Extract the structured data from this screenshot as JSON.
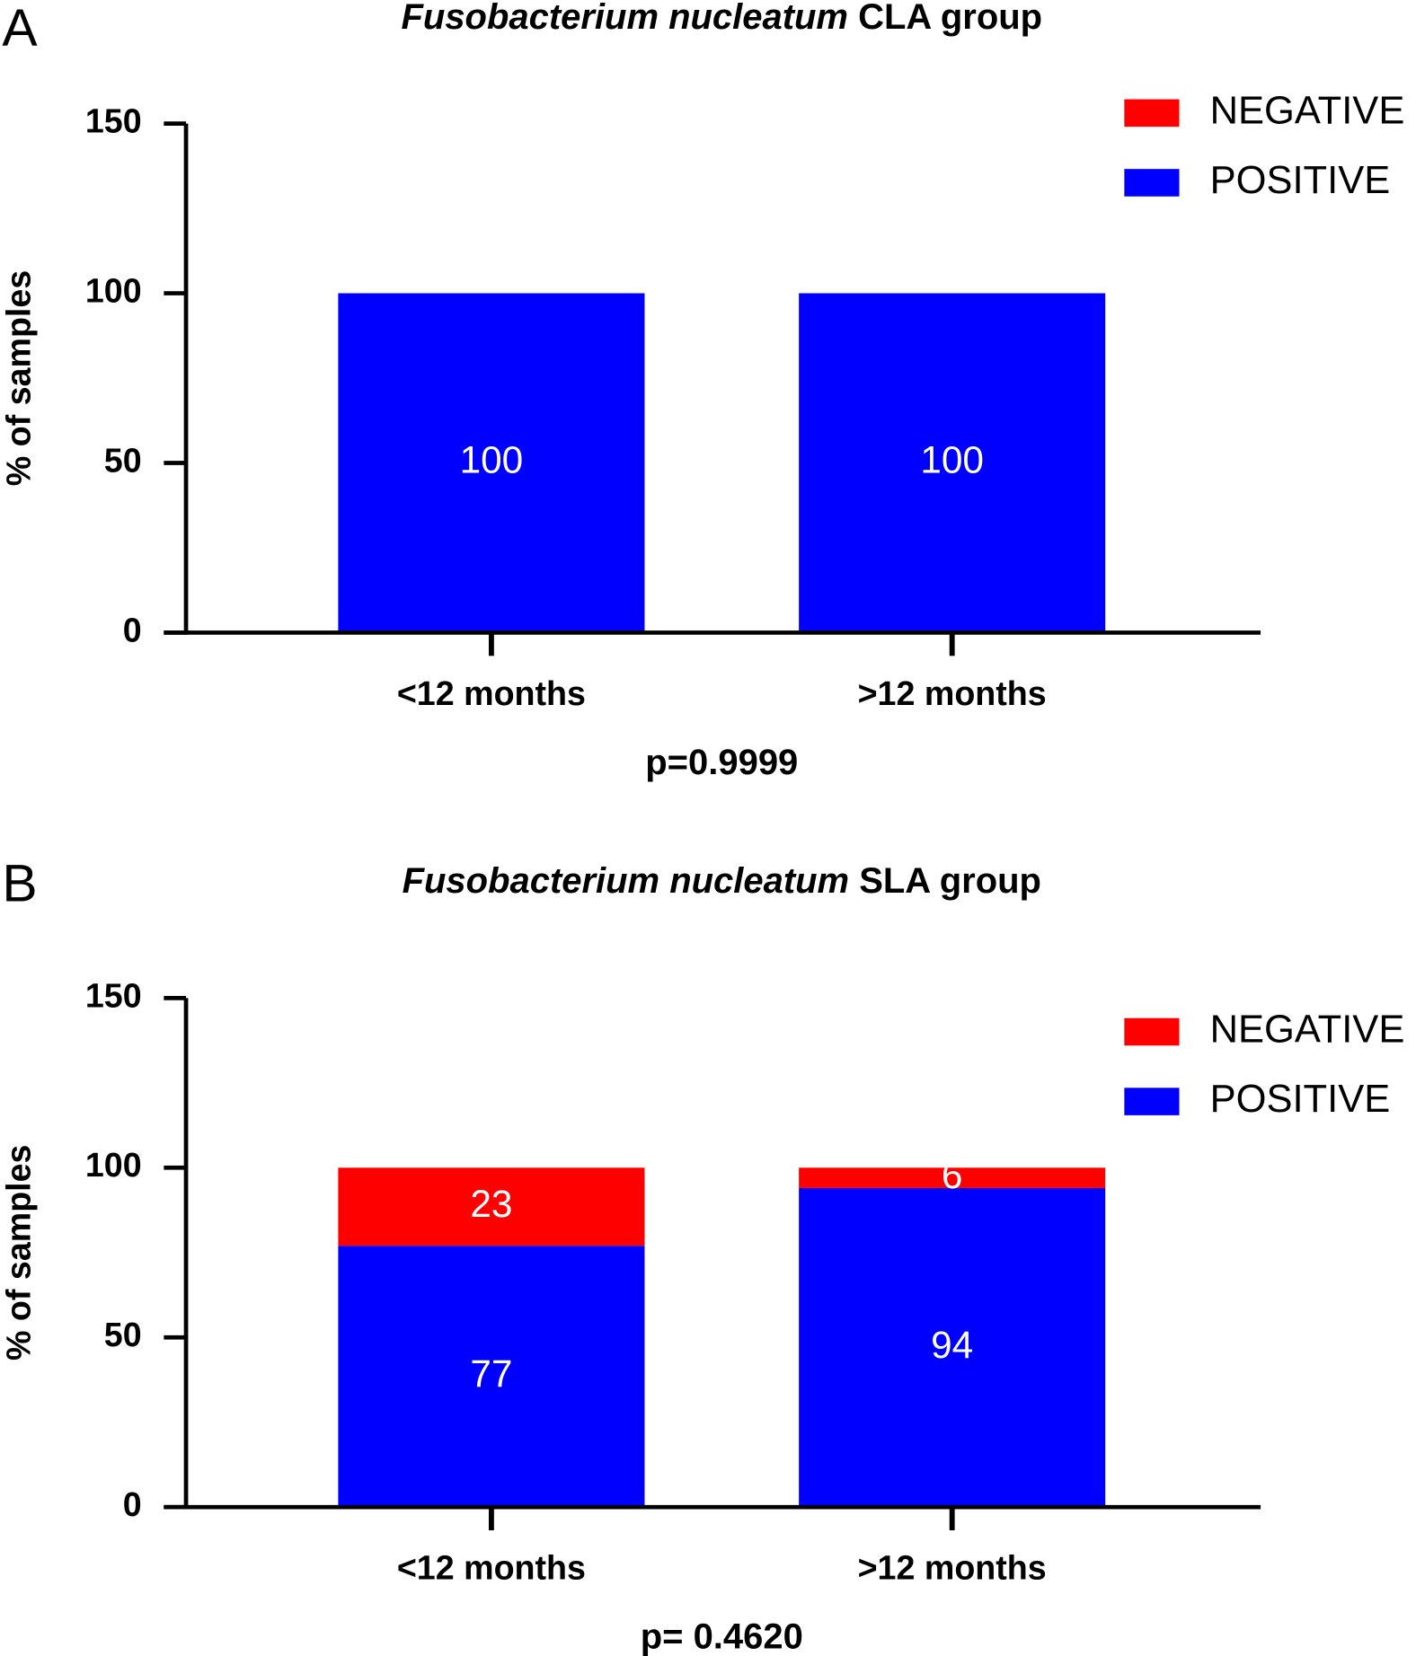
{
  "chart_data": [
    {
      "type": "bar",
      "stacked": true,
      "panel": "A",
      "title": {
        "species": "Fusobacterium nucleatum",
        "group": "CLA group"
      },
      "ylabel": "% of samples",
      "categories": [
        "<12 months",
        ">12 months"
      ],
      "series": [
        {
          "name": "POSITIVE",
          "color": "#0000ff",
          "values": [
            100,
            100
          ]
        },
        {
          "name": "NEGATIVE",
          "color": "#ff0000",
          "values": [
            0,
            0
          ]
        }
      ],
      "ylim": [
        0,
        150
      ],
      "yticks": [
        0,
        50,
        100,
        150
      ],
      "legend": "top-right",
      "annotation": "p=0.9999"
    },
    {
      "type": "bar",
      "stacked": true,
      "panel": "B",
      "title": {
        "species": "Fusobacterium nucleatum",
        "group": "SLA group"
      },
      "ylabel": "% of samples",
      "categories": [
        "<12 months",
        ">12 months"
      ],
      "series": [
        {
          "name": "POSITIVE",
          "color": "#0000ff",
          "values": [
            77,
            94
          ]
        },
        {
          "name": "NEGATIVE",
          "color": "#ff0000",
          "values": [
            23,
            6
          ]
        }
      ],
      "ylim": [
        0,
        150
      ],
      "yticks": [
        0,
        50,
        100,
        150
      ],
      "legend": "top-right",
      "annotation": "p= 0.4620"
    }
  ]
}
